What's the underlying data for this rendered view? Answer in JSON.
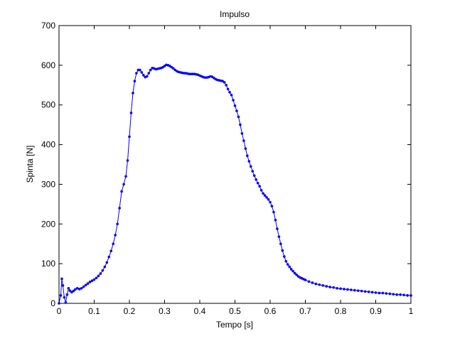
{
  "chart_data": {
    "type": "line",
    "title": "Impulso",
    "xlabel": "Tempo [s]",
    "ylabel": "Spinta [N]",
    "xlim": [
      0,
      1
    ],
    "ylim": [
      0,
      700
    ],
    "xticks": [
      0,
      0.1,
      0.2,
      0.3,
      0.4,
      0.5,
      0.6,
      0.7,
      0.8,
      0.9,
      1
    ],
    "xtick_labels": [
      "0",
      "0.1",
      "0.2",
      "0.3",
      "0.4",
      "0.5",
      "0.6",
      "0.7",
      "0.8",
      "0.9",
      "1"
    ],
    "yticks": [
      0,
      100,
      200,
      300,
      400,
      500,
      600,
      700
    ],
    "ytick_labels": [
      "0",
      "100",
      "200",
      "300",
      "400",
      "500",
      "600",
      "700"
    ],
    "grid": false,
    "line_color": "#0000ff",
    "marker": "dot",
    "series": [
      {
        "points": [
          [
            0.0,
            0
          ],
          [
            0.005,
            20
          ],
          [
            0.008,
            62
          ],
          [
            0.011,
            45
          ],
          [
            0.015,
            15
          ],
          [
            0.019,
            2
          ],
          [
            0.023,
            22
          ],
          [
            0.027,
            38
          ],
          [
            0.031,
            32
          ],
          [
            0.036,
            28
          ],
          [
            0.041,
            31
          ],
          [
            0.046,
            35
          ],
          [
            0.052,
            38
          ],
          [
            0.058,
            36
          ],
          [
            0.064,
            38
          ],
          [
            0.07,
            42
          ],
          [
            0.076,
            46
          ],
          [
            0.082,
            50
          ],
          [
            0.088,
            54
          ],
          [
            0.094,
            57
          ],
          [
            0.1,
            60
          ],
          [
            0.106,
            64
          ],
          [
            0.112,
            69
          ],
          [
            0.118,
            75
          ],
          [
            0.124,
            83
          ],
          [
            0.13,
            92
          ],
          [
            0.136,
            103
          ],
          [
            0.142,
            117
          ],
          [
            0.148,
            132
          ],
          [
            0.154,
            150
          ],
          [
            0.16,
            172
          ],
          [
            0.166,
            200
          ],
          [
            0.172,
            240
          ],
          [
            0.178,
            282
          ],
          [
            0.184,
            300
          ],
          [
            0.19,
            320
          ],
          [
            0.195,
            360
          ],
          [
            0.2,
            420
          ],
          [
            0.205,
            480
          ],
          [
            0.21,
            530
          ],
          [
            0.215,
            560
          ],
          [
            0.22,
            580
          ],
          [
            0.225,
            588
          ],
          [
            0.23,
            588
          ],
          [
            0.235,
            582
          ],
          [
            0.24,
            575
          ],
          [
            0.245,
            570
          ],
          [
            0.25,
            572
          ],
          [
            0.255,
            580
          ],
          [
            0.26,
            588
          ],
          [
            0.265,
            593
          ],
          [
            0.27,
            592
          ],
          [
            0.275,
            590
          ],
          [
            0.28,
            591
          ],
          [
            0.285,
            592
          ],
          [
            0.29,
            593
          ],
          [
            0.295,
            595
          ],
          [
            0.3,
            598
          ],
          [
            0.305,
            601
          ],
          [
            0.31,
            600
          ],
          [
            0.315,
            598
          ],
          [
            0.32,
            595
          ],
          [
            0.325,
            592
          ],
          [
            0.33,
            588
          ],
          [
            0.335,
            585
          ],
          [
            0.34,
            583
          ],
          [
            0.345,
            582
          ],
          [
            0.35,
            581
          ],
          [
            0.355,
            580
          ],
          [
            0.36,
            580
          ],
          [
            0.365,
            579
          ],
          [
            0.37,
            578
          ],
          [
            0.375,
            578
          ],
          [
            0.38,
            578
          ],
          [
            0.385,
            578
          ],
          [
            0.39,
            577
          ],
          [
            0.395,
            576
          ],
          [
            0.4,
            574
          ],
          [
            0.405,
            572
          ],
          [
            0.41,
            570
          ],
          [
            0.415,
            569
          ],
          [
            0.42,
            569
          ],
          [
            0.425,
            570
          ],
          [
            0.43,
            572
          ],
          [
            0.435,
            571
          ],
          [
            0.44,
            568
          ],
          [
            0.445,
            565
          ],
          [
            0.45,
            563
          ],
          [
            0.455,
            562
          ],
          [
            0.46,
            561
          ],
          [
            0.465,
            560
          ],
          [
            0.47,
            557
          ],
          [
            0.475,
            550
          ],
          [
            0.48,
            540
          ],
          [
            0.485,
            532
          ],
          [
            0.49,
            525
          ],
          [
            0.495,
            512
          ],
          [
            0.5,
            498
          ],
          [
            0.505,
            485
          ],
          [
            0.51,
            470
          ],
          [
            0.515,
            450
          ],
          [
            0.52,
            428
          ],
          [
            0.525,
            410
          ],
          [
            0.53,
            390
          ],
          [
            0.535,
            372
          ],
          [
            0.54,
            358
          ],
          [
            0.545,
            345
          ],
          [
            0.55,
            333
          ],
          [
            0.555,
            322
          ],
          [
            0.56,
            312
          ],
          [
            0.565,
            303
          ],
          [
            0.57,
            295
          ],
          [
            0.575,
            285
          ],
          [
            0.58,
            277
          ],
          [
            0.585,
            272
          ],
          [
            0.59,
            267
          ],
          [
            0.595,
            262
          ],
          [
            0.6,
            255
          ],
          [
            0.605,
            245
          ],
          [
            0.61,
            230
          ],
          [
            0.615,
            210
          ],
          [
            0.62,
            188
          ],
          [
            0.625,
            168
          ],
          [
            0.63,
            150
          ],
          [
            0.635,
            133
          ],
          [
            0.64,
            118
          ],
          [
            0.645,
            106
          ],
          [
            0.65,
            98
          ],
          [
            0.655,
            92
          ],
          [
            0.66,
            86
          ],
          [
            0.665,
            81
          ],
          [
            0.67,
            76
          ],
          [
            0.675,
            72
          ],
          [
            0.68,
            68
          ],
          [
            0.685,
            65
          ],
          [
            0.69,
            63
          ],
          [
            0.695,
            61
          ],
          [
            0.7,
            59
          ],
          [
            0.71,
            55
          ],
          [
            0.72,
            52
          ],
          [
            0.73,
            49
          ],
          [
            0.74,
            47
          ],
          [
            0.75,
            45
          ],
          [
            0.76,
            43
          ],
          [
            0.77,
            41
          ],
          [
            0.78,
            40
          ],
          [
            0.79,
            38
          ],
          [
            0.8,
            37
          ],
          [
            0.81,
            36
          ],
          [
            0.82,
            35
          ],
          [
            0.83,
            34
          ],
          [
            0.84,
            33
          ],
          [
            0.85,
            32
          ],
          [
            0.86,
            31
          ],
          [
            0.87,
            30
          ],
          [
            0.88,
            29
          ],
          [
            0.89,
            28
          ],
          [
            0.9,
            27
          ],
          [
            0.91,
            26
          ],
          [
            0.92,
            26
          ],
          [
            0.93,
            25
          ],
          [
            0.94,
            24
          ],
          [
            0.95,
            23
          ],
          [
            0.96,
            22
          ],
          [
            0.97,
            22
          ],
          [
            0.98,
            21
          ],
          [
            0.99,
            20
          ],
          [
            1.0,
            20
          ]
        ]
      }
    ]
  }
}
